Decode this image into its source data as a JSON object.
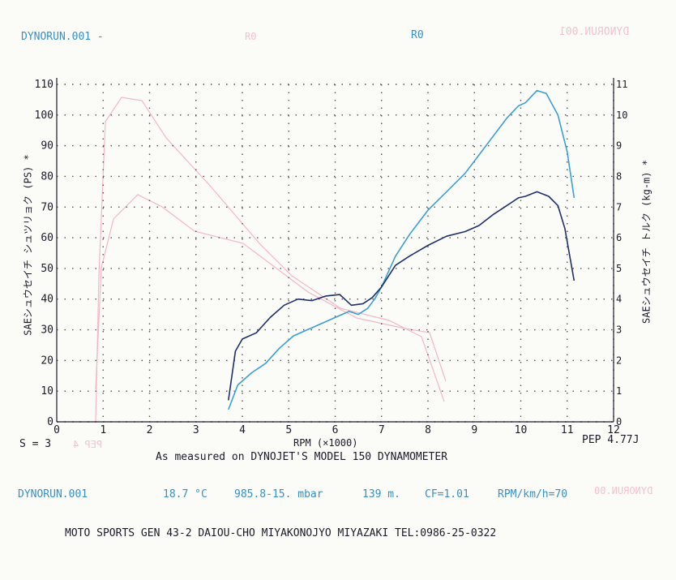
{
  "header": {
    "run_label": "DYNORUN.001 -",
    "mid_ghost": "R0",
    "mid_label": "R0",
    "ghost_right": "DYNORUN.001"
  },
  "footer": {
    "scale_note": "S = 3",
    "ghost_left": "PEP 4",
    "measured_note": "As measured on DYNOJET'S MODEL 150 DYNAMOMETER",
    "pep_label": "PEP 4.77J",
    "run_label": "DYNORUN.001",
    "temperature": "18.7 °C",
    "pressure": "985.8-15. mbar",
    "altitude": "139 m.",
    "cf": "CF=1.01",
    "ratio": "RPM/km/h=70",
    "ghost_right": "DYNORUN.00",
    "shop": "MOTO SPORTS GEN  43-2 DAIOU-CHO MIYAKONOJYO MIYAZAKI  TEL:0986-25-0322"
  },
  "colors": {
    "grid": "#555555",
    "power": "#3a9fd6",
    "torque": "#1e2f6e",
    "ghost": "#f3b8c4",
    "text": "#1a1a2a",
    "accent": "#3a8fc2"
  },
  "chart_data": {
    "type": "line",
    "xlabel": "RPM (×1000)",
    "ylabel": "SAEシュウセイチ シュツリョク (PS) *",
    "y2label": "SAEシュウセイチ トルク (kg-m) *",
    "xlim": [
      0,
      12
    ],
    "ylim": [
      0,
      110
    ],
    "y2lim": [
      0,
      11
    ],
    "x_ticks": [
      0,
      1,
      2,
      3,
      4,
      5,
      6,
      7,
      8,
      9,
      10,
      11,
      12
    ],
    "y_ticks": [
      0,
      10,
      20,
      30,
      40,
      50,
      60,
      70,
      80,
      90,
      100,
      110
    ],
    "y2_ticks": [
      0,
      1,
      2,
      3,
      4,
      5,
      6,
      7,
      8,
      9,
      10,
      11
    ],
    "grid": true,
    "series": [
      {
        "role": "power",
        "axis": "left",
        "x": [
          3.7,
          3.9,
          4.2,
          4.5,
          4.8,
          5.1,
          5.4,
          5.7,
          6.0,
          6.3,
          6.5,
          6.7,
          6.85,
          7.0,
          7.3,
          7.6,
          8.0,
          8.4,
          8.8,
          9.1,
          9.4,
          9.7,
          9.95,
          10.1,
          10.35,
          10.55,
          10.8,
          11.0,
          11.15
        ],
        "values": [
          4,
          12,
          16,
          19,
          24,
          28,
          30,
          32,
          34,
          36,
          35,
          37,
          40,
          44,
          54,
          61,
          69,
          75,
          81,
          87,
          93,
          99,
          103,
          104,
          108,
          107,
          100,
          88,
          73
        ]
      },
      {
        "role": "torque",
        "axis": "right",
        "x": [
          3.7,
          3.85,
          4.0,
          4.3,
          4.6,
          4.9,
          5.2,
          5.5,
          5.8,
          6.1,
          6.35,
          6.6,
          6.8,
          7.0,
          7.3,
          7.6,
          8.0,
          8.4,
          8.8,
          9.1,
          9.4,
          9.7,
          9.95,
          10.1,
          10.35,
          10.6,
          10.8,
          10.95,
          11.15
        ],
        "values": [
          0.7,
          2.3,
          2.7,
          2.9,
          3.4,
          3.8,
          4.0,
          3.95,
          4.1,
          4.15,
          3.8,
          3.85,
          4.05,
          4.4,
          5.1,
          5.4,
          5.75,
          6.05,
          6.2,
          6.4,
          6.75,
          7.05,
          7.3,
          7.35,
          7.5,
          7.35,
          7.05,
          6.3,
          4.6
        ]
      }
    ]
  }
}
